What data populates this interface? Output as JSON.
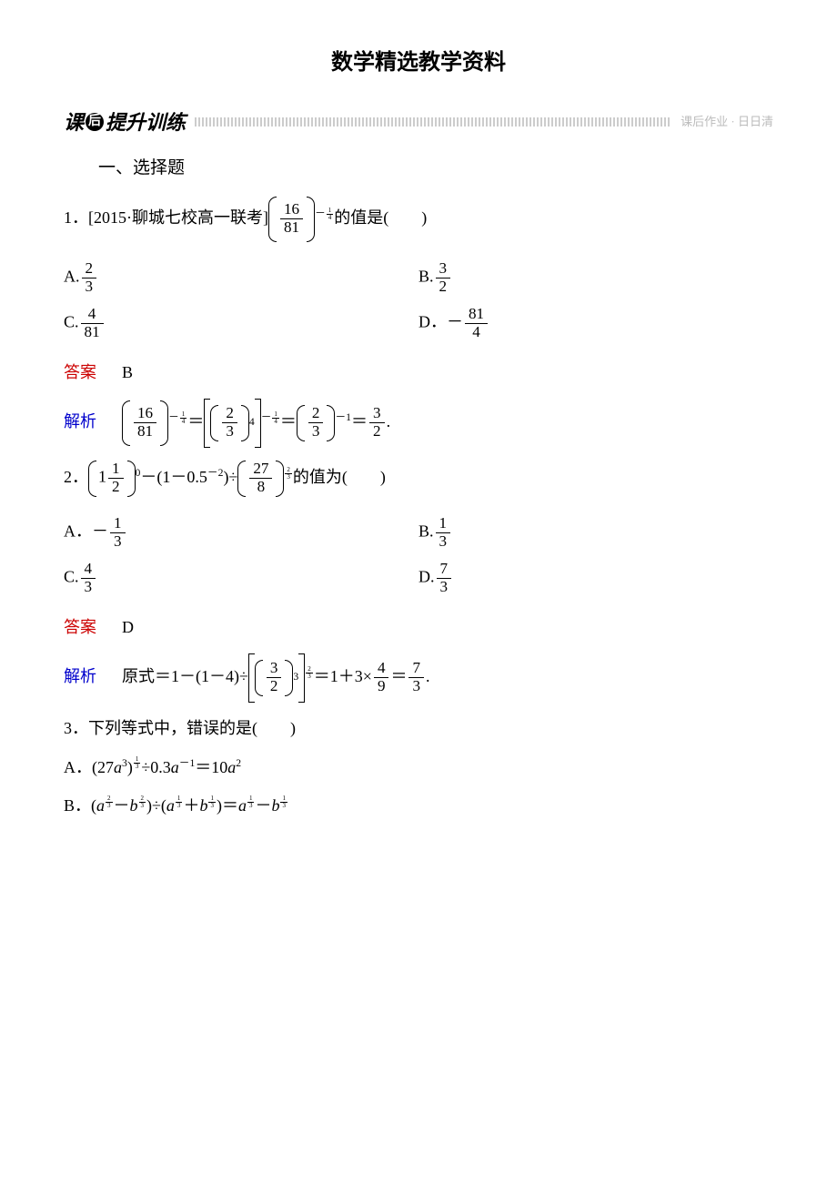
{
  "title": "数学精选教学资料",
  "banner": {
    "left_prefix": "课",
    "circle_char": "后",
    "left_suffix": "提升训练",
    "right_text": "课后作业 · 日日清"
  },
  "section1_header": "一、选择题",
  "q1": {
    "prefix": "1．[2015·聊城七校高一联考]",
    "base_num": "16",
    "base_den": "81",
    "exp_sign": "－",
    "exp_num": "1",
    "exp_den": "4",
    "suffix": "的值是(　　)",
    "optA_label": "A.",
    "optA_num": "2",
    "optA_den": "3",
    "optB_label": "B.",
    "optB_num": "3",
    "optB_den": "2",
    "optC_label": "C.",
    "optC_num": "4",
    "optC_den": "81",
    "optD_label": "D．",
    "optD_sign": "－",
    "optD_num": "81",
    "optD_den": "4",
    "answer_label": "答案",
    "answer": "B",
    "analysis_label": "解析",
    "step1_num": "16",
    "step1_den": "81",
    "step1_exp_sign": "－",
    "step1_exp_num": "1",
    "step1_exp_den": "4",
    "eq1": "＝",
    "step2_num": "2",
    "step2_den": "3",
    "step2_pow": "4",
    "step2_exp_sign": "－",
    "step2_exp_num": "1",
    "step2_exp_den": "4",
    "eq2": "＝",
    "step3_num": "2",
    "step3_den": "3",
    "step3_exp": "－1",
    "eq3": "＝",
    "result_num": "3",
    "result_den": "2",
    "period": "."
  },
  "q2": {
    "prefix": "2．",
    "t1_int": "1",
    "t1_num": "1",
    "t1_den": "2",
    "t1_pow": "0",
    "minus": "－(1－0.5",
    "neg2": "－2",
    "close_div": ")÷",
    "t2_num": "27",
    "t2_den": "8",
    "t2_exp_num": "2",
    "t2_exp_den": "3",
    "suffix": "的值为(　　)",
    "optA_label": "A．",
    "optA_sign": "－",
    "optA_num": "1",
    "optA_den": "3",
    "optB_label": "B.",
    "optB_num": "1",
    "optB_den": "3",
    "optC_label": "C.",
    "optC_num": "4",
    "optC_den": "3",
    "optD_label": "D.",
    "optD_num": "7",
    "optD_den": "3",
    "answer_label": "答案",
    "answer": "D",
    "analysis_label": "解析",
    "analysis_text": "原式＝1－(1－4)÷",
    "s_num": "3",
    "s_den": "2",
    "s_pow": "3",
    "s_exp_num": "2",
    "s_exp_den": "3",
    "mid": "＝1＋3×",
    "f_num": "4",
    "f_den": "9",
    "eq": "＝",
    "r_num": "7",
    "r_den": "3",
    "period": "."
  },
  "q3": {
    "prefix": "3．下列等式中，错误的是(　　)",
    "optA_label": "A．",
    "optA_text1": "(27",
    "optA_a": "a",
    "optA_cube": "3",
    "optA_text2": ")",
    "optA_exp_num": "1",
    "optA_exp_den": "3",
    "optA_text3": "÷0.3",
    "optA_a2": "a",
    "optA_neg1": "－1",
    "optA_text4": "＝10",
    "optA_a3": "a",
    "optA_sq": "2",
    "optB_label": "B．",
    "optB_open": "(",
    "optB_a": "a",
    "optB_ae_num": "2",
    "optB_ae_den": "3",
    "optB_minus": "－",
    "optB_b": "b",
    "optB_be_num": "2",
    "optB_be_den": "3",
    "optB_close_div": ")÷(",
    "optB_a2": "a",
    "optB_a2e_num": "1",
    "optB_a2e_den": "3",
    "optB_plus": "＋",
    "optB_b2": "b",
    "optB_b2e_num": "1",
    "optB_b2e_den": "3",
    "optB_close_eq": ")＝",
    "optB_a3": "a",
    "optB_a3e_num": "1",
    "optB_a3e_den": "3",
    "optB_minus2": "－",
    "optB_b3": "b",
    "optB_b3e_num": "1",
    "optB_b3e_den": "3"
  },
  "colors": {
    "answer_label": "#cc0000",
    "analysis_label": "#0000cc",
    "text": "#000000",
    "bg": "#ffffff"
  }
}
